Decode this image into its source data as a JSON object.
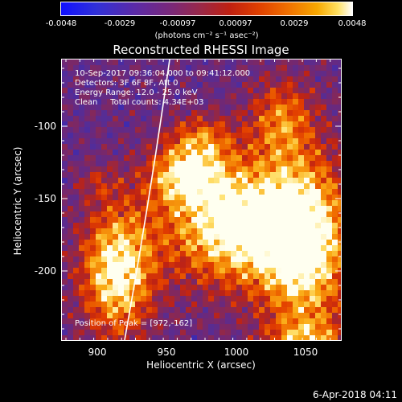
{
  "colorbar": {
    "ticks": [
      "-0.0048",
      "-0.0029",
      "-0.00097",
      "0.00097",
      "0.0029",
      "0.0048"
    ],
    "unit": "(photons cm⁻² s⁻¹ asec⁻²)"
  },
  "title": "Reconstructed RHESSI Image",
  "annotations": {
    "time": "10-Sep-2017 09:36:04.000 to 09:41:12.000",
    "detectors": "Detectors: 3F 6F 8F, Att 0",
    "energy": "Energy Range: 12.0 - 25.0 keV",
    "clean": "Clean     Total counts: 4.34E+03",
    "peak": "Position of Peak = [972,-162]"
  },
  "xaxis": {
    "label": "Heliocentric X (arcsec)",
    "ticks": [
      "900",
      "950",
      "1000",
      "1050"
    ]
  },
  "yaxis": {
    "label": "Heliocentric Y (arcsec)",
    "ticks": [
      "-100",
      "-150",
      "-200"
    ]
  },
  "footer": "6-Apr-2018 04:11",
  "colors": {
    "background": "#000000",
    "foreground": "#ffffff"
  }
}
